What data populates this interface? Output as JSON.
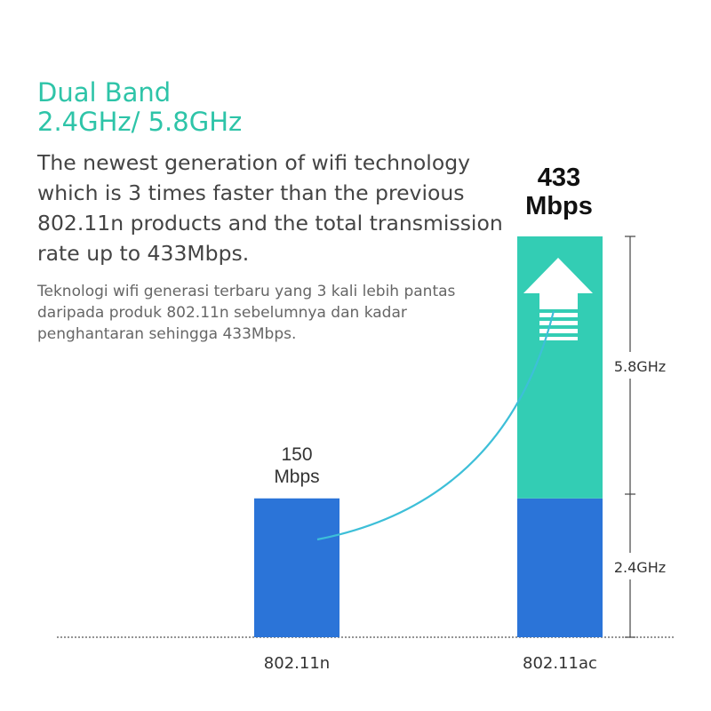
{
  "header": {
    "title_line1": "Dual Band",
    "title_line2": "2.4GHz/ 5.8GHz"
  },
  "description": {
    "english": "The newest generation of wifi technology which is 3 times faster than the previous 802.11n products and the total transmission rate up to 433Mbps.",
    "malay": "Teknologi wifi generasi terbaru yang 3 kali lebih pantas daripada produk 802.11n sebelumnya dan kadar penghantaran sehingga 433Mbps."
  },
  "colors": {
    "accent_teal": "#2ec4a8",
    "bar_blue": "#2b74d8",
    "bar_teal": "#33cdb4",
    "text_dark": "#444444"
  },
  "chart_data": {
    "type": "bar",
    "categories": [
      "802.11n",
      "802.11ac"
    ],
    "values": [
      150,
      433
    ],
    "value_labels": [
      {
        "value": "150",
        "unit": "Mbps"
      },
      {
        "value": "433",
        "unit": "Mbps"
      }
    ],
    "segments": [
      {
        "category": "802.11ac",
        "name": "2.4GHz",
        "value": 150
      },
      {
        "category": "802.11ac",
        "name": "5.8GHz",
        "value": 283
      }
    ],
    "segment_labels": [
      "5.8GHz",
      "2.4GHz"
    ],
    "ylim": [
      0,
      433
    ],
    "grid": false,
    "annotations": [
      "up-arrow-icon",
      "curved-connector"
    ]
  }
}
